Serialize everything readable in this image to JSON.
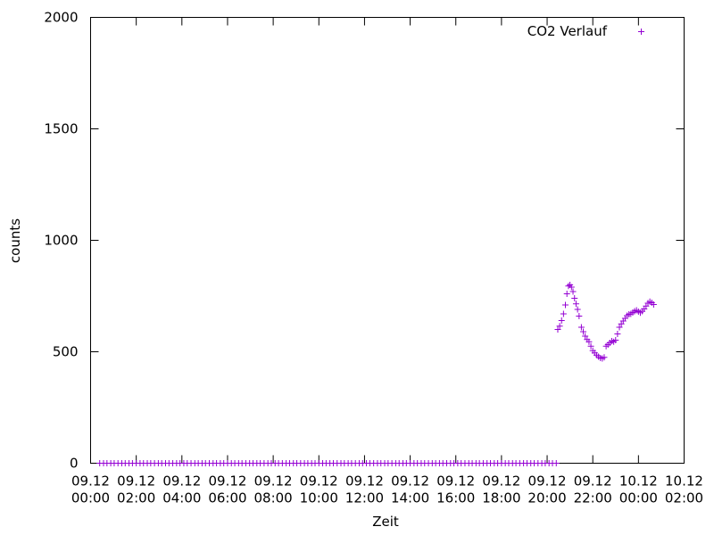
{
  "chart_data": {
    "type": "scatter",
    "xlabel": "Zeit",
    "ylabel": "counts",
    "ylim": [
      0,
      2000
    ],
    "xlim": [
      "2024-12-09T00:00",
      "2024-12-10T02:00"
    ],
    "yticks": [
      "0",
      "500",
      "1000",
      "1500",
      "2000"
    ],
    "xticks": [
      {
        "line1": "09.12",
        "line2": "00:00"
      },
      {
        "line1": "09.12",
        "line2": "02:00"
      },
      {
        "line1": "09.12",
        "line2": "04:00"
      },
      {
        "line1": "09.12",
        "line2": "06:00"
      },
      {
        "line1": "09.12",
        "line2": "08:00"
      },
      {
        "line1": "09.12",
        "line2": "10:00"
      },
      {
        "line1": "09.12",
        "line2": "12:00"
      },
      {
        "line1": "09.12",
        "line2": "14:00"
      },
      {
        "line1": "09.12",
        "line2": "16:00"
      },
      {
        "line1": "09.12",
        "line2": "18:00"
      },
      {
        "line1": "09.12",
        "line2": "20:00"
      },
      {
        "line1": "09.12",
        "line2": "22:00"
      },
      {
        "line1": "10.12",
        "line2": "00:00"
      },
      {
        "line1": "10.12",
        "line2": "02:00"
      }
    ],
    "legend_position": "top-right",
    "grid": false,
    "series": [
      {
        "name": "CO2 Verlauf",
        "color": "#9400d3",
        "marker": "plus",
        "points": [
          [
            "2024-12-09T00:24",
            0
          ],
          [
            "2024-12-09T00:34",
            0
          ],
          [
            "2024-12-09T00:43",
            0
          ],
          [
            "2024-12-09T00:53",
            0
          ],
          [
            "2024-12-09T01:02",
            0
          ],
          [
            "2024-12-09T01:12",
            0
          ],
          [
            "2024-12-09T01:22",
            0
          ],
          [
            "2024-12-09T01:31",
            0
          ],
          [
            "2024-12-09T01:41",
            0
          ],
          [
            "2024-12-09T01:50",
            0
          ],
          [
            "2024-12-09T02:00",
            0
          ],
          [
            "2024-12-09T02:10",
            0
          ],
          [
            "2024-12-09T02:19",
            0
          ],
          [
            "2024-12-09T02:29",
            0
          ],
          [
            "2024-12-09T02:38",
            0
          ],
          [
            "2024-12-09T02:48",
            0
          ],
          [
            "2024-12-09T02:58",
            0
          ],
          [
            "2024-12-09T03:07",
            0
          ],
          [
            "2024-12-09T03:17",
            0
          ],
          [
            "2024-12-09T03:26",
            0
          ],
          [
            "2024-12-09T03:36",
            0
          ],
          [
            "2024-12-09T03:46",
            0
          ],
          [
            "2024-12-09T03:55",
            0
          ],
          [
            "2024-12-09T04:05",
            0
          ],
          [
            "2024-12-09T04:14",
            0
          ],
          [
            "2024-12-09T04:24",
            0
          ],
          [
            "2024-12-09T04:34",
            0
          ],
          [
            "2024-12-09T04:43",
            0
          ],
          [
            "2024-12-09T04:53",
            0
          ],
          [
            "2024-12-09T05:02",
            0
          ],
          [
            "2024-12-09T05:12",
            0
          ],
          [
            "2024-12-09T05:22",
            0
          ],
          [
            "2024-12-09T05:31",
            0
          ],
          [
            "2024-12-09T05:41",
            0
          ],
          [
            "2024-12-09T05:50",
            0
          ],
          [
            "2024-12-09T06:00",
            0
          ],
          [
            "2024-12-09T06:10",
            0
          ],
          [
            "2024-12-09T06:19",
            0
          ],
          [
            "2024-12-09T06:29",
            0
          ],
          [
            "2024-12-09T06:38",
            0
          ],
          [
            "2024-12-09T06:48",
            0
          ],
          [
            "2024-12-09T06:58",
            0
          ],
          [
            "2024-12-09T07:07",
            0
          ],
          [
            "2024-12-09T07:17",
            0
          ],
          [
            "2024-12-09T07:26",
            0
          ],
          [
            "2024-12-09T07:36",
            0
          ],
          [
            "2024-12-09T07:46",
            0
          ],
          [
            "2024-12-09T07:55",
            0
          ],
          [
            "2024-12-09T08:05",
            0
          ],
          [
            "2024-12-09T08:14",
            0
          ],
          [
            "2024-12-09T08:24",
            0
          ],
          [
            "2024-12-09T08:34",
            0
          ],
          [
            "2024-12-09T08:43",
            0
          ],
          [
            "2024-12-09T08:53",
            0
          ],
          [
            "2024-12-09T09:02",
            0
          ],
          [
            "2024-12-09T09:12",
            0
          ],
          [
            "2024-12-09T09:22",
            0
          ],
          [
            "2024-12-09T09:31",
            0
          ],
          [
            "2024-12-09T09:41",
            0
          ],
          [
            "2024-12-09T09:50",
            0
          ],
          [
            "2024-12-09T10:00",
            0
          ],
          [
            "2024-12-09T10:10",
            0
          ],
          [
            "2024-12-09T10:19",
            0
          ],
          [
            "2024-12-09T10:29",
            0
          ],
          [
            "2024-12-09T10:38",
            0
          ],
          [
            "2024-12-09T10:48",
            0
          ],
          [
            "2024-12-09T10:58",
            0
          ],
          [
            "2024-12-09T11:07",
            0
          ],
          [
            "2024-12-09T11:17",
            0
          ],
          [
            "2024-12-09T11:26",
            0
          ],
          [
            "2024-12-09T11:36",
            0
          ],
          [
            "2024-12-09T11:46",
            0
          ],
          [
            "2024-12-09T11:55",
            0
          ],
          [
            "2024-12-09T12:05",
            0
          ],
          [
            "2024-12-09T12:14",
            0
          ],
          [
            "2024-12-09T12:24",
            0
          ],
          [
            "2024-12-09T12:34",
            0
          ],
          [
            "2024-12-09T12:43",
            0
          ],
          [
            "2024-12-09T12:53",
            0
          ],
          [
            "2024-12-09T13:02",
            0
          ],
          [
            "2024-12-09T13:12",
            0
          ],
          [
            "2024-12-09T13:22",
            0
          ],
          [
            "2024-12-09T13:31",
            0
          ],
          [
            "2024-12-09T13:41",
            0
          ],
          [
            "2024-12-09T13:50",
            0
          ],
          [
            "2024-12-09T14:00",
            0
          ],
          [
            "2024-12-09T14:10",
            0
          ],
          [
            "2024-12-09T14:19",
            0
          ],
          [
            "2024-12-09T14:29",
            0
          ],
          [
            "2024-12-09T14:38",
            0
          ],
          [
            "2024-12-09T14:48",
            0
          ],
          [
            "2024-12-09T14:58",
            0
          ],
          [
            "2024-12-09T15:07",
            0
          ],
          [
            "2024-12-09T15:17",
            0
          ],
          [
            "2024-12-09T15:26",
            0
          ],
          [
            "2024-12-09T15:36",
            0
          ],
          [
            "2024-12-09T15:46",
            0
          ],
          [
            "2024-12-09T15:55",
            0
          ],
          [
            "2024-12-09T16:05",
            0
          ],
          [
            "2024-12-09T16:14",
            0
          ],
          [
            "2024-12-09T16:24",
            0
          ],
          [
            "2024-12-09T16:34",
            0
          ],
          [
            "2024-12-09T16:43",
            0
          ],
          [
            "2024-12-09T16:53",
            0
          ],
          [
            "2024-12-09T17:02",
            0
          ],
          [
            "2024-12-09T17:12",
            0
          ],
          [
            "2024-12-09T17:22",
            0
          ],
          [
            "2024-12-09T17:31",
            0
          ],
          [
            "2024-12-09T17:41",
            0
          ],
          [
            "2024-12-09T17:50",
            0
          ],
          [
            "2024-12-09T18:00",
            0
          ],
          [
            "2024-12-09T18:10",
            0
          ],
          [
            "2024-12-09T18:19",
            0
          ],
          [
            "2024-12-09T18:29",
            0
          ],
          [
            "2024-12-09T18:38",
            0
          ],
          [
            "2024-12-09T18:48",
            0
          ],
          [
            "2024-12-09T18:58",
            0
          ],
          [
            "2024-12-09T19:07",
            0
          ],
          [
            "2024-12-09T19:17",
            0
          ],
          [
            "2024-12-09T19:26",
            0
          ],
          [
            "2024-12-09T19:36",
            0
          ],
          [
            "2024-12-09T19:46",
            0
          ],
          [
            "2024-12-09T19:55",
            0
          ],
          [
            "2024-12-09T20:05",
            0
          ],
          [
            "2024-12-09T20:14",
            0
          ],
          [
            "2024-12-09T20:24",
            0
          ],
          [
            "2024-12-09T20:28",
            600
          ],
          [
            "2024-12-09T20:33",
            615
          ],
          [
            "2024-12-09T20:38",
            640
          ],
          [
            "2024-12-09T20:43",
            670
          ],
          [
            "2024-12-09T20:48",
            710
          ],
          [
            "2024-12-09T20:52",
            760
          ],
          [
            "2024-12-09T20:56",
            795
          ],
          [
            "2024-12-09T21:00",
            800
          ],
          [
            "2024-12-09T21:04",
            790
          ],
          [
            "2024-12-09T21:08",
            770
          ],
          [
            "2024-12-09T21:12",
            740
          ],
          [
            "2024-12-09T21:16",
            715
          ],
          [
            "2024-12-09T21:20",
            690
          ],
          [
            "2024-12-09T21:24",
            660
          ],
          [
            "2024-12-09T21:30",
            610
          ],
          [
            "2024-12-09T21:35",
            590
          ],
          [
            "2024-12-09T21:40",
            570
          ],
          [
            "2024-12-09T21:45",
            555
          ],
          [
            "2024-12-09T21:50",
            545
          ],
          [
            "2024-12-09T21:55",
            525
          ],
          [
            "2024-12-09T22:00",
            505
          ],
          [
            "2024-12-09T22:05",
            495
          ],
          [
            "2024-12-09T22:10",
            485
          ],
          [
            "2024-12-09T22:15",
            478
          ],
          [
            "2024-12-09T22:20",
            472
          ],
          [
            "2024-12-09T22:25",
            470
          ],
          [
            "2024-12-09T22:30",
            475
          ],
          [
            "2024-12-09T22:35",
            525
          ],
          [
            "2024-12-09T22:40",
            532
          ],
          [
            "2024-12-09T22:45",
            540
          ],
          [
            "2024-12-09T22:50",
            548
          ],
          [
            "2024-12-09T22:55",
            545
          ],
          [
            "2024-12-09T23:00",
            552
          ],
          [
            "2024-12-09T23:05",
            580
          ],
          [
            "2024-12-09T23:10",
            610
          ],
          [
            "2024-12-09T23:15",
            625
          ],
          [
            "2024-12-09T23:20",
            638
          ],
          [
            "2024-12-09T23:25",
            650
          ],
          [
            "2024-12-09T23:30",
            662
          ],
          [
            "2024-12-09T23:35",
            668
          ],
          [
            "2024-12-09T23:40",
            670
          ],
          [
            "2024-12-09T23:45",
            676
          ],
          [
            "2024-12-09T23:50",
            682
          ],
          [
            "2024-12-09T23:55",
            686
          ],
          [
            "2024-12-10T00:00",
            680
          ],
          [
            "2024-12-10T00:05",
            675
          ],
          [
            "2024-12-10T00:10",
            682
          ],
          [
            "2024-12-10T00:15",
            692
          ],
          [
            "2024-12-10T00:20",
            705
          ],
          [
            "2024-12-10T00:25",
            718
          ],
          [
            "2024-12-10T00:30",
            725
          ],
          [
            "2024-12-10T00:35",
            720
          ],
          [
            "2024-12-10T00:40",
            712
          ]
        ]
      }
    ]
  }
}
